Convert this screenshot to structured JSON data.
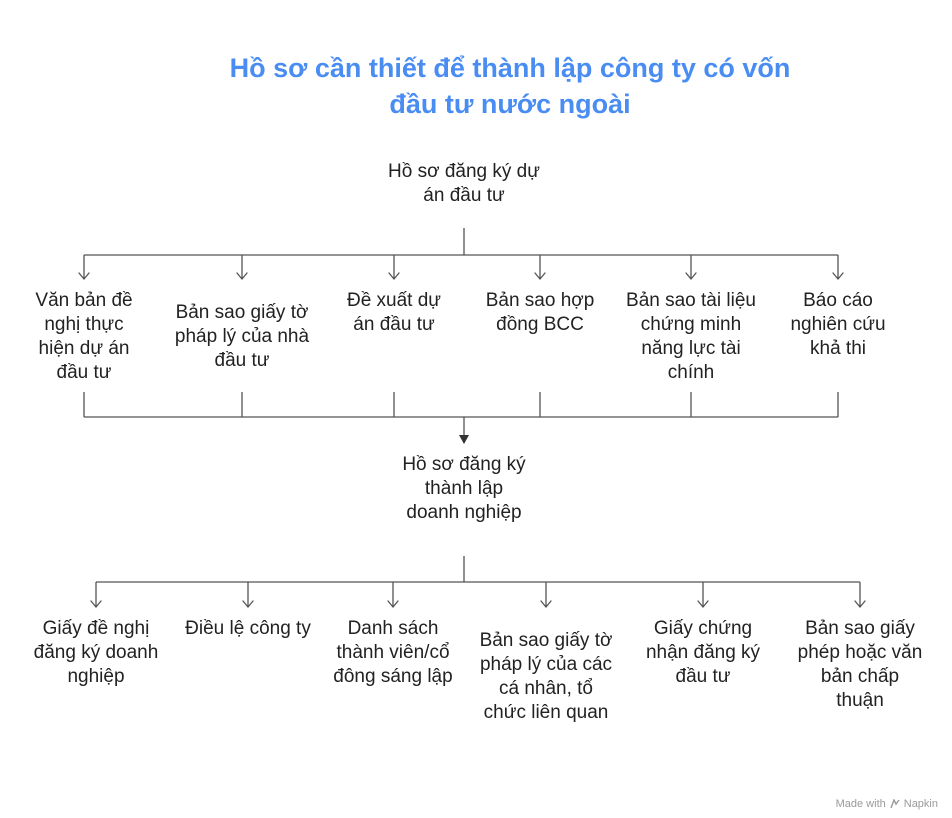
{
  "title_line1": "Hồ sơ cần thiết để thành lập công ty có vốn",
  "title_line2": "đầu tư nước ngoài",
  "group1": {
    "label": "Hồ sơ đăng ký dự án đầu tư",
    "items": [
      "Văn bản đề nghị thực hiện dự án đầu tư",
      "Bản sao giấy tờ pháp lý của nhà đầu tư",
      "Đề xuất dự án đầu tư",
      "Bản sao hợp đồng BCC",
      "Bản sao tài liệu chứng minh năng lực tài chính",
      "Báo cáo nghiên cứu khả thi"
    ]
  },
  "group2": {
    "label": "Hồ sơ đăng ký thành lập doanh nghiệp",
    "items": [
      "Giấy đề nghị đăng ký doanh nghiệp",
      "Điều lệ công ty",
      "Danh sách thành viên/cổ đông sáng lập",
      "Bản sao giấy tờ pháp lý của các cá nhân, tổ chức liên quan",
      "Giấy chứng nhận đăng ký đầu tư",
      "Bản sao giấy phép hoặc văn bản chấp thuận"
    ]
  },
  "footer": {
    "made_with": "Made with",
    "brand": "Napkin"
  },
  "colors": {
    "title": "#4a8df2",
    "lines": "#555555"
  }
}
